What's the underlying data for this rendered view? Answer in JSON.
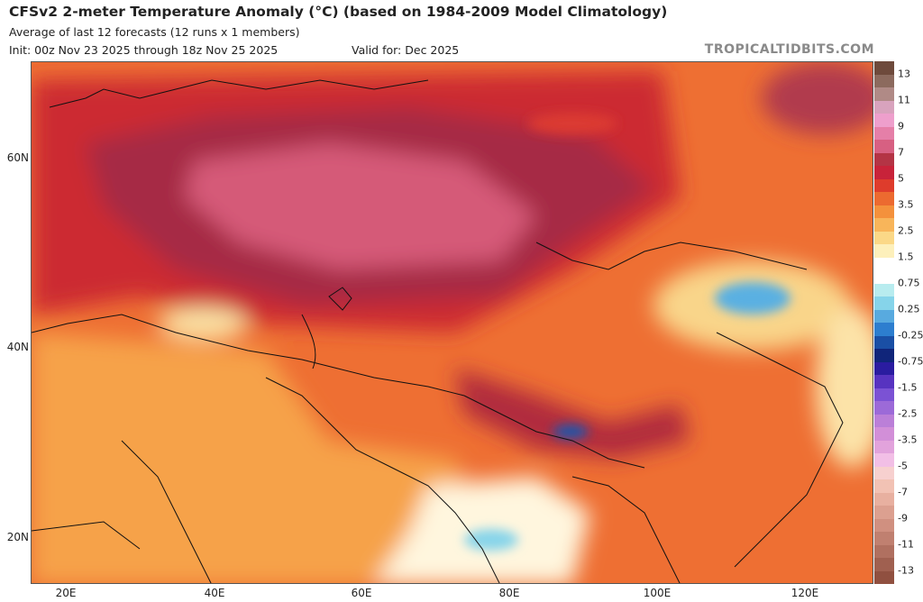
{
  "header": {
    "title": "CFSv2 2-meter Temperature Anomaly (°C) (based on 1984-2009 Model Climatology)",
    "subtitle": "Average of last 12 forecasts (12 runs x 1 members)",
    "init": "Init: 00z Nov 23 2025 through 18z Nov 25 2025",
    "valid": "Valid for: Dec 2025",
    "credit": "TROPICALTIDBITS.COM"
  },
  "axes": {
    "lat_labels": [
      "60N",
      "40N",
      "20N"
    ],
    "lon_labels": [
      "20E",
      "40E",
      "60E",
      "80E",
      "100E",
      "120E"
    ]
  },
  "colorbar": {
    "labels": [
      "13",
      "11",
      "9",
      "7",
      "5",
      "3.5",
      "2.5",
      "1.5",
      "0.75",
      "0.25",
      "-0.25",
      "-0.75",
      "-1.5",
      "-2.5",
      "-3.5",
      "-5",
      "-7",
      "-9",
      "-11",
      "-13"
    ],
    "colors": [
      "#6e4a3c",
      "#8c6a5e",
      "#b08a86",
      "#d8a3bd",
      "#ee9fcc",
      "#e57fa8",
      "#d76082",
      "#b43445",
      "#c8233a",
      "#de3c2c",
      "#ec6a30",
      "#f4913c",
      "#f8b55a",
      "#fbd887",
      "#fdf0bb",
      "#ffffff",
      "#ffffff",
      "#b8ecef",
      "#86d4ea",
      "#58aadf",
      "#2d7ecf",
      "#1a4fa5",
      "#10257a",
      "#2a1ca0",
      "#5733c0",
      "#7b52d4",
      "#9c6ad8",
      "#bb7fd8",
      "#d28fd8",
      "#e2a3dc",
      "#f2bfe6",
      "#f7d0cf",
      "#f2c2b4",
      "#e8b0a0",
      "#dca090",
      "#d09080",
      "#c08070",
      "#b07060",
      "#a06050",
      "#905040"
    ]
  }
}
